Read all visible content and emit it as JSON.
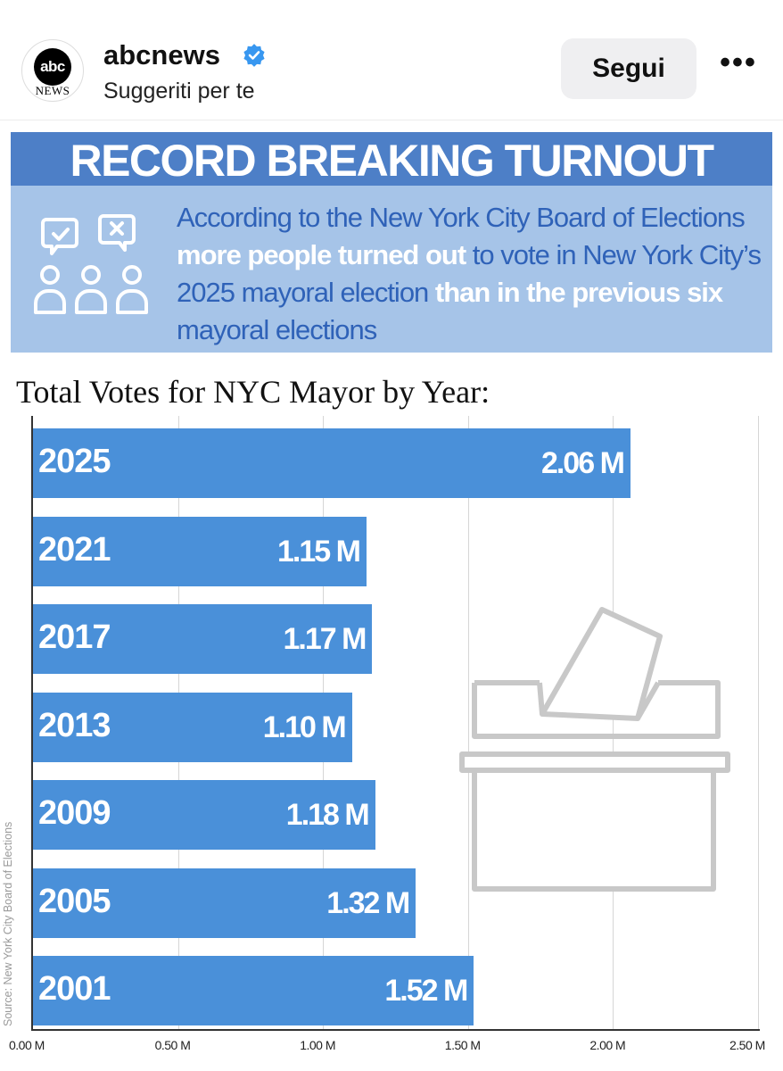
{
  "post": {
    "account_name": "abcnews",
    "subtitle": "Suggeriti per te",
    "follow_label": "Segui",
    "more_label": "•••",
    "avatar_logo": "abc",
    "avatar_logo_sub": "NEWS",
    "verified_color": "#3897f0"
  },
  "banner": {
    "title": "RECORD BREAKING TURNOUT",
    "text_parts": [
      {
        "text": "According to the New York City Board of Elections ",
        "highlight": false
      },
      {
        "text": "more people turned out",
        "highlight": true
      },
      {
        "text": " to vote in New York City’s 2025 mayoral election ",
        "highlight": false
      },
      {
        "text": "than in the previous six",
        "highlight": true
      },
      {
        "text": " mayoral elections",
        "highlight": false
      }
    ],
    "icon": "voters-icon",
    "title_bar_color": "#4d7fc7",
    "background_color": "#a6c4e8"
  },
  "chart_data": {
    "type": "bar",
    "orientation": "horizontal",
    "title": "Total Votes for NYC Mayor by Year:",
    "categories": [
      "2025",
      "2021",
      "2017",
      "2013",
      "2009",
      "2005",
      "2001"
    ],
    "values": [
      2.06,
      1.15,
      1.17,
      1.1,
      1.18,
      1.32,
      1.52
    ],
    "value_labels": [
      "2.06 M",
      "1.15 M",
      "1.17 M",
      "1.10 M",
      "1.18 M",
      "1.32 M",
      "1.52 M"
    ],
    "unit": "M",
    "xlim": [
      0,
      2.5
    ],
    "xticks": [
      "0.00 M",
      "0.50 M",
      "1.00 M",
      "1.50 M",
      "2.00 M",
      "2.50 M"
    ],
    "grid": true,
    "bar_color": "#4a90d9",
    "source": "Source: New York City Board of Elections",
    "decoration": "ballot-box-icon"
  }
}
